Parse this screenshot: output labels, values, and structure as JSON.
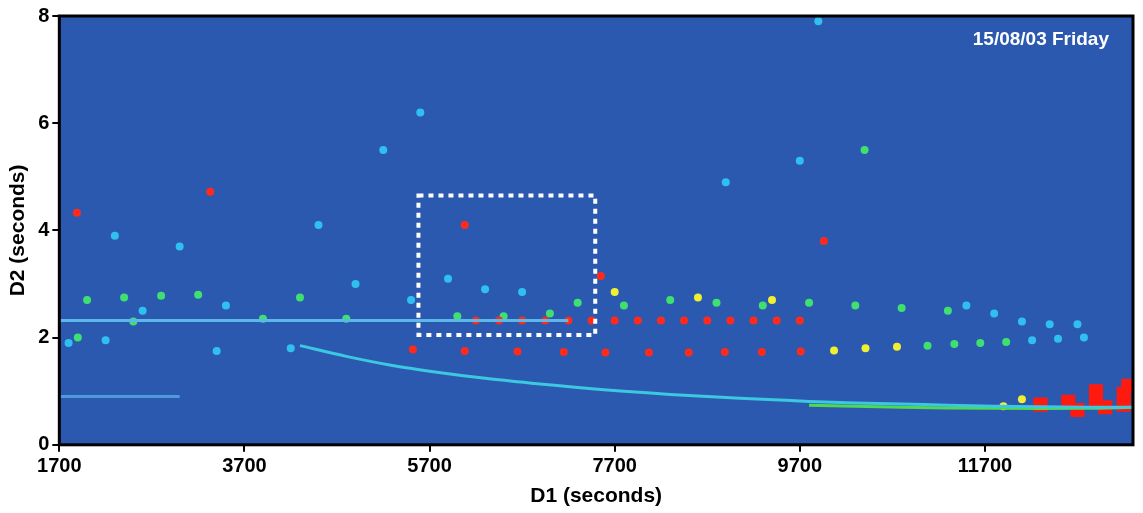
{
  "chart_data": {
    "type": "scatter",
    "x_label": "D1 (seconds)",
    "y_label": "D2 (seconds)",
    "annotation": "15/08/03 Friday",
    "box": {
      "xlim": [
        5580,
        7490
      ],
      "ylim": [
        2.05,
        4.65
      ]
    },
    "xlim": [
      1700,
      13300
    ],
    "xticks": [
      1700,
      3700,
      5700,
      7700,
      9700,
      11700
    ],
    "ylim": [
      0,
      8
    ],
    "yticks": [
      0,
      2,
      4,
      6,
      8
    ],
    "grid": false,
    "series": [
      {
        "type": "line",
        "color": "#3cc8e0",
        "line_style": "solid",
        "x": [
          4300,
          4800,
          5300,
          5800,
          6300,
          6800,
          7300,
          7800,
          8300,
          8800,
          9300,
          9800,
          10300,
          10800,
          11300,
          11800,
          12300,
          12800,
          13300
        ],
        "y": [
          1.85,
          1.65,
          1.48,
          1.35,
          1.24,
          1.15,
          1.07,
          1.0,
          0.94,
          0.89,
          0.85,
          0.81,
          0.78,
          0.76,
          0.74,
          0.72,
          0.71,
          0.7,
          0.7
        ]
      },
      {
        "type": "line",
        "color": "#50d850",
        "line_style": "solid",
        "x": [
          9800,
          10800,
          11800,
          12800,
          13300
        ],
        "y": [
          0.74,
          0.7,
          0.68,
          0.68,
          0.7
        ]
      },
      {
        "type": "line",
        "color": "#4f9ad8",
        "line_style": "solid",
        "x": [
          1700,
          3000
        ],
        "y": [
          0.9,
          0.9
        ]
      },
      {
        "type": "line",
        "color": "#5cb8e8",
        "line_style": "solid",
        "x": [
          1700,
          7200
        ],
        "y": [
          2.32,
          2.32
        ]
      },
      {
        "type": "scatter",
        "color": "#ff2a1a",
        "marker": "circle",
        "x": [
          1890,
          3330,
          6080,
          7550,
          9960,
          6200,
          6450,
          6700,
          6950,
          7200,
          7450,
          7700,
          7950,
          8200,
          8450,
          8700,
          8950,
          9200,
          9450,
          9700,
          5520,
          6080,
          6650,
          7150,
          7600,
          8070,
          8500,
          8890,
          9290,
          9710
        ],
        "y": [
          4.33,
          4.72,
          4.1,
          3.15,
          3.8,
          2.32,
          2.32,
          2.32,
          2.32,
          2.32,
          2.32,
          2.32,
          2.32,
          2.32,
          2.32,
          2.32,
          2.32,
          2.32,
          2.32,
          2.32,
          1.78,
          1.75,
          1.74,
          1.73,
          1.72,
          1.72,
          1.72,
          1.73,
          1.73,
          1.74
        ]
      },
      {
        "type": "scatter",
        "color": "#f0f030",
        "marker": "circle",
        "x": [
          10070,
          10410,
          10750,
          7700,
          8600,
          9400,
          11900,
          12100
        ],
        "y": [
          1.76,
          1.8,
          1.83,
          2.85,
          2.75,
          2.7,
          0.72,
          0.85
        ]
      },
      {
        "type": "scatter",
        "color": "#40e070",
        "marker": "circle",
        "x": [
          11080,
          11370,
          11650,
          11930,
          7300,
          7800,
          8300,
          8800,
          9300,
          9800,
          10300,
          10800,
          11300,
          7000,
          6500,
          6000,
          10400,
          2000,
          2400,
          2800,
          3200,
          4300,
          2500,
          3900,
          4800,
          1900
        ],
        "y": [
          1.85,
          1.88,
          1.9,
          1.92,
          2.65,
          2.6,
          2.7,
          2.65,
          2.6,
          2.65,
          2.6,
          2.55,
          2.5,
          2.45,
          2.4,
          2.4,
          5.5,
          2.7,
          2.75,
          2.78,
          2.8,
          2.75,
          2.3,
          2.35,
          2.35,
          2.0
        ]
      },
      {
        "type": "scatter",
        "color": "#30c0f0",
        "marker": "circle",
        "x": [
          12210,
          12490,
          12770,
          11500,
          11800,
          12100,
          12400,
          12700,
          2300,
          3000,
          4500,
          5200,
          5600,
          8900,
          9700,
          9900,
          6300,
          6700,
          5900,
          2600,
          3500,
          1800,
          2200,
          3400,
          4200,
          4900,
          5500
        ],
        "y": [
          1.95,
          1.98,
          2.0,
          2.6,
          2.45,
          2.3,
          2.25,
          2.25,
          3.9,
          3.7,
          4.1,
          5.5,
          6.2,
          4.9,
          5.3,
          7.9,
          2.9,
          2.85,
          3.1,
          2.5,
          2.6,
          1.9,
          1.95,
          1.75,
          1.8,
          3.0,
          2.7
        ]
      },
      {
        "type": "scatter",
        "color": "#ff1a10",
        "marker": "square",
        "x": [
          12300,
          12600,
          12900,
          13200,
          12700,
          13000,
          13200,
          12900,
          13250
        ],
        "y": [
          0.75,
          0.8,
          0.85,
          0.95,
          0.65,
          0.7,
          0.75,
          1.0,
          1.1
        ]
      }
    ]
  }
}
